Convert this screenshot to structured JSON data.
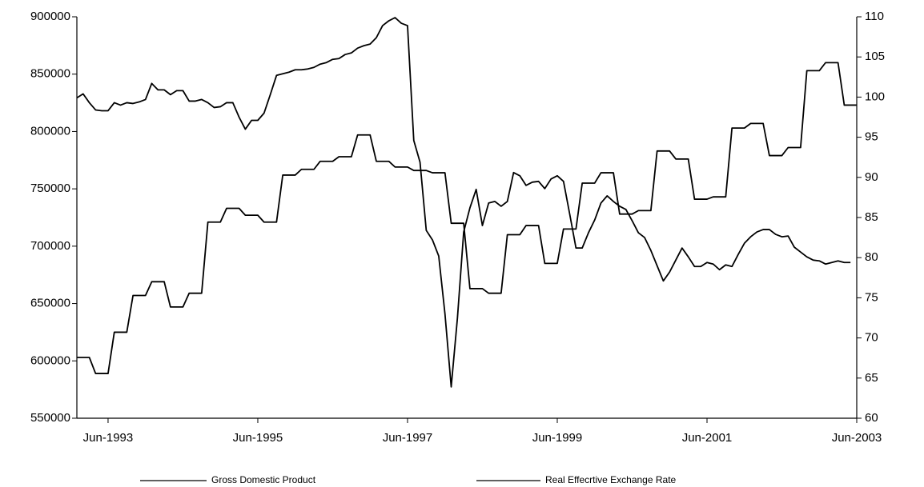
{
  "chart_data": {
    "type": "line",
    "categories": [
      null,
      null,
      null,
      null,
      null,
      "Jun-1993",
      null,
      null,
      null,
      null,
      null,
      null,
      null,
      null,
      null,
      null,
      null,
      null,
      null,
      null,
      null,
      null,
      null,
      null,
      null,
      null,
      null,
      null,
      null,
      "Jun-1995",
      null,
      null,
      null,
      null,
      null,
      null,
      null,
      null,
      null,
      null,
      null,
      null,
      null,
      null,
      null,
      null,
      null,
      null,
      null,
      null,
      null,
      null,
      null,
      "Jun-1997",
      null,
      null,
      null,
      null,
      null,
      null,
      null,
      null,
      null,
      null,
      null,
      null,
      null,
      null,
      null,
      null,
      null,
      null,
      null,
      null,
      null,
      null,
      null,
      "Jun-1999",
      null,
      null,
      null,
      null,
      null,
      null,
      null,
      null,
      null,
      null,
      null,
      null,
      null,
      null,
      null,
      null,
      null,
      null,
      null,
      null,
      null,
      null,
      null,
      "Jun-2001",
      null,
      null,
      null,
      null,
      null,
      null,
      null,
      null,
      null,
      null,
      null,
      null,
      null,
      null,
      null,
      null,
      null,
      null,
      null,
      null,
      null,
      null,
      null,
      "Jun-2003"
    ],
    "series": [
      {
        "name": "Gross Domestic Product",
        "color": "#000000",
        "axis": "y",
        "values": [
          603000,
          603000,
          603000,
          589000,
          589000,
          589000,
          625000,
          625000,
          625000,
          657000,
          657000,
          657000,
          669000,
          669000,
          669000,
          647000,
          647000,
          647000,
          659000,
          659000,
          659000,
          721000,
          721000,
          721000,
          733000,
          733000,
          733000,
          727000,
          727000,
          727000,
          721000,
          721000,
          721000,
          762000,
          762000,
          762000,
          767000,
          767000,
          767000,
          774000,
          774000,
          774000,
          778000,
          778000,
          778000,
          797000,
          797000,
          797000,
          774000,
          774000,
          774000,
          769000,
          769000,
          769000,
          766000,
          766000,
          766000,
          764000,
          764000,
          764000,
          720000,
          720000,
          720000,
          663000,
          663000,
          663000,
          659000,
          659000,
          659000,
          710000,
          710000,
          710000,
          718000,
          718000,
          718000,
          685000,
          685000,
          685000,
          715000,
          715000,
          715000,
          755000,
          755000,
          755000,
          764000,
          764000,
          764000,
          728000,
          728000,
          728000,
          731000,
          731000,
          731000,
          783000,
          783000,
          783000,
          776000,
          776000,
          776000,
          741000,
          741000,
          741000,
          743000,
          743000,
          743000,
          803000,
          803000,
          803000,
          807000,
          807000,
          807000,
          779000,
          779000,
          779000,
          786000,
          786000,
          786000,
          853000,
          853000,
          853000,
          860000,
          860000,
          860000,
          823000,
          823000,
          823000
        ]
      },
      {
        "name": "Real Effecrtive Exchange Rate",
        "color": "#000000",
        "axis": "y2",
        "values": [
          99.9,
          100.4,
          99.3,
          98.4,
          98.3,
          98.3,
          99.3,
          99.0,
          99.3,
          99.2,
          99.4,
          99.7,
          101.7,
          100.9,
          100.9,
          100.3,
          100.8,
          100.8,
          99.5,
          99.5,
          99.7,
          99.3,
          98.7,
          98.8,
          99.3,
          99.3,
          97.5,
          96.0,
          97.1,
          97.1,
          98.0,
          100.3,
          102.7,
          102.9,
          103.1,
          103.4,
          103.4,
          103.5,
          103.7,
          104.1,
          104.3,
          104.7,
          104.8,
          105.3,
          105.5,
          106.1,
          106.4,
          106.6,
          107.4,
          108.9,
          109.5,
          109.9,
          109.2,
          108.9,
          94.6,
          91.9,
          83.4,
          82.2,
          80.2,
          73.0,
          63.9,
          72.5,
          83.2,
          86.2,
          88.5,
          84.0,
          86.8,
          87.0,
          86.4,
          87.0,
          90.6,
          90.2,
          89.0,
          89.4,
          89.5,
          88.6,
          89.8,
          90.2,
          89.5,
          85.4,
          81.2,
          81.2,
          83.1,
          84.7,
          86.8,
          87.7,
          87.0,
          86.4,
          86.0,
          84.6,
          83.1,
          82.5,
          80.9,
          79.0,
          77.1,
          78.2,
          79.7,
          81.2,
          80.1,
          78.9,
          78.9,
          79.4,
          79.2,
          78.5,
          79.1,
          78.9,
          80.4,
          81.8,
          82.6,
          83.2,
          83.5,
          83.5,
          82.9,
          82.6,
          82.7,
          81.3,
          80.7,
          80.1,
          79.7,
          79.6,
          79.2,
          79.4,
          79.6,
          79.4,
          79.4,
          null
        ]
      }
    ],
    "ylim": [
      550000,
      900000
    ],
    "yticks": [
      550000,
      600000,
      650000,
      700000,
      750000,
      800000,
      850000,
      900000
    ],
    "y2lim": [
      60,
      110
    ],
    "y2ticks": [
      60,
      65,
      70,
      75,
      80,
      85,
      90,
      95,
      100,
      105,
      110
    ],
    "grid": false,
    "legend": "bottom"
  }
}
